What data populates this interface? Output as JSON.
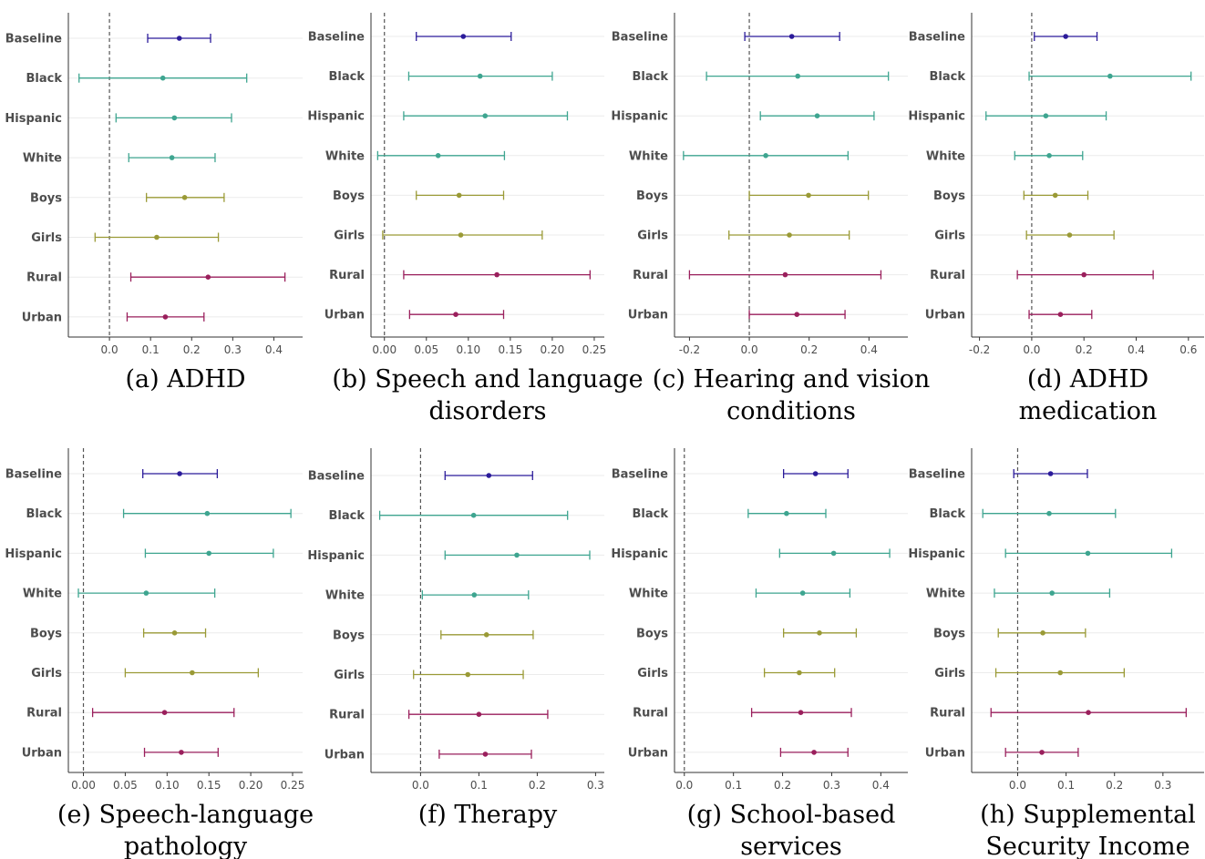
{
  "categories": [
    "Baseline",
    "Black",
    "Hispanic",
    "White",
    "Boys",
    "Girls",
    "Rural",
    "Urban"
  ],
  "colors": {
    "Baseline": "#2b1b9a",
    "Black": "#3ea590",
    "Hispanic": "#3ea590",
    "White": "#3ea590",
    "Boys": "#9a9a36",
    "Girls": "#9a9a36",
    "Rural": "#9a1f5c",
    "Urban": "#9a1f5c"
  },
  "chart_data": [
    {
      "type": "scatter",
      "caption": [
        "(a) ADHD"
      ],
      "xlim": [
        -0.1,
        0.47
      ],
      "ticks": [
        0.0,
        0.1,
        0.2,
        0.3,
        0.4
      ],
      "tick_labels": [
        "0.0",
        "0.1",
        "0.2",
        "0.3",
        "0.4"
      ],
      "estimates": [
        0.17,
        0.13,
        0.158,
        0.152,
        0.183,
        0.115,
        0.24,
        0.136
      ],
      "lower": [
        0.093,
        -0.074,
        0.016,
        0.047,
        0.09,
        -0.035,
        0.052,
        0.043
      ],
      "upper": [
        0.246,
        0.334,
        0.297,
        0.257,
        0.279,
        0.265,
        0.427,
        0.23
      ]
    },
    {
      "type": "scatter",
      "caption": [
        "(b) Speech and language",
        "disorders"
      ],
      "xlim": [
        -0.016,
        0.262
      ],
      "ticks": [
        0.0,
        0.05,
        0.1,
        0.15,
        0.2,
        0.25
      ],
      "tick_labels": [
        "0.00",
        "0.05",
        "0.10",
        "0.15",
        "0.20",
        "0.25"
      ],
      "estimates": [
        0.094,
        0.114,
        0.12,
        0.064,
        0.089,
        0.091,
        0.134,
        0.085
      ],
      "lower": [
        0.038,
        0.029,
        0.023,
        -0.008,
        0.038,
        -0.002,
        0.023,
        0.03
      ],
      "upper": [
        0.151,
        0.2,
        0.218,
        0.143,
        0.142,
        0.188,
        0.245,
        0.142
      ]
    },
    {
      "type": "scatter",
      "caption": [
        "(c) Hearing and vision",
        "conditions"
      ],
      "xlim": [
        -0.25,
        0.53
      ],
      "ticks": [
        -0.2,
        0.0,
        0.2,
        0.4
      ],
      "tick_labels": [
        "-0.2",
        "0.0",
        "0.2",
        "0.4"
      ],
      "estimates": [
        0.142,
        0.162,
        0.227,
        0.055,
        0.198,
        0.134,
        0.12,
        0.159
      ],
      "lower": [
        -0.015,
        -0.143,
        0.037,
        -0.22,
        0.0,
        -0.068,
        -0.2,
        0.0
      ],
      "upper": [
        0.302,
        0.465,
        0.417,
        0.33,
        0.398,
        0.334,
        0.44,
        0.32
      ]
    },
    {
      "type": "scatter",
      "caption": [
        "(d) ADHD",
        "medication"
      ],
      "xlim": [
        -0.23,
        0.66
      ],
      "ticks": [
        -0.2,
        0.0,
        0.2,
        0.4,
        0.6
      ],
      "tick_labels": [
        "-0.2",
        "0.0",
        "0.2",
        "0.4",
        "0.6"
      ],
      "estimates": [
        0.13,
        0.3,
        0.054,
        0.067,
        0.09,
        0.145,
        0.2,
        0.11
      ],
      "lower": [
        0.01,
        -0.01,
        -0.175,
        -0.065,
        -0.03,
        -0.02,
        -0.055,
        -0.01
      ],
      "upper": [
        0.25,
        0.61,
        0.285,
        0.195,
        0.215,
        0.315,
        0.465,
        0.23
      ]
    },
    {
      "type": "scatter",
      "caption": [
        "(e) Speech-language",
        "pathology"
      ],
      "xlim": [
        -0.018,
        0.262
      ],
      "ticks": [
        0.0,
        0.05,
        0.1,
        0.15,
        0.2,
        0.25
      ],
      "tick_labels": [
        "0.00",
        "0.05",
        "0.10",
        "0.15",
        "0.20",
        "0.25"
      ],
      "estimates": [
        0.115,
        0.148,
        0.15,
        0.075,
        0.109,
        0.13,
        0.097,
        0.117
      ],
      "lower": [
        0.071,
        0.048,
        0.074,
        -0.006,
        0.072,
        0.05,
        0.011,
        0.073
      ],
      "upper": [
        0.16,
        0.248,
        0.227,
        0.157,
        0.146,
        0.209,
        0.18,
        0.161
      ]
    },
    {
      "type": "scatter",
      "caption": [
        "(f) Therapy"
      ],
      "xlim": [
        -0.085,
        0.315
      ],
      "ticks": [
        0.0,
        0.1,
        0.2,
        0.3
      ],
      "tick_labels": [
        "0.0",
        "0.1",
        "0.2",
        "0.3"
      ],
      "estimates": [
        0.117,
        0.091,
        0.165,
        0.092,
        0.113,
        0.081,
        0.1,
        0.111
      ],
      "lower": [
        0.042,
        -0.07,
        0.042,
        0.003,
        0.035,
        -0.012,
        -0.02,
        0.032
      ],
      "upper": [
        0.192,
        0.252,
        0.29,
        0.185,
        0.193,
        0.176,
        0.218,
        0.19
      ]
    },
    {
      "type": "scatter",
      "caption": [
        "(g) School-based",
        "services"
      ],
      "xlim": [
        -0.02,
        0.455
      ],
      "ticks": [
        0.0,
        0.1,
        0.2,
        0.3,
        0.4
      ],
      "tick_labels": [
        "0.0",
        "0.1",
        "0.2",
        "0.3",
        "0.4"
      ],
      "estimates": [
        0.267,
        0.208,
        0.304,
        0.241,
        0.275,
        0.234,
        0.237,
        0.264
      ],
      "lower": [
        0.202,
        0.13,
        0.194,
        0.146,
        0.202,
        0.163,
        0.137,
        0.196
      ],
      "upper": [
        0.333,
        0.288,
        0.418,
        0.337,
        0.35,
        0.306,
        0.34,
        0.333
      ]
    },
    {
      "type": "scatter",
      "caption": [
        "(h) Supplemental",
        "Security Income"
      ],
      "xlim": [
        -0.095,
        0.385
      ],
      "ticks": [
        0.0,
        0.1,
        0.2,
        0.3
      ],
      "tick_labels": [
        "0.0",
        "0.1",
        "0.2",
        "0.3"
      ],
      "estimates": [
        0.068,
        0.065,
        0.145,
        0.071,
        0.052,
        0.088,
        0.146,
        0.05
      ],
      "lower": [
        -0.008,
        -0.072,
        -0.025,
        -0.048,
        -0.04,
        -0.045,
        -0.055,
        -0.025
      ],
      "upper": [
        0.144,
        0.202,
        0.318,
        0.19,
        0.14,
        0.22,
        0.348,
        0.125
      ]
    }
  ]
}
